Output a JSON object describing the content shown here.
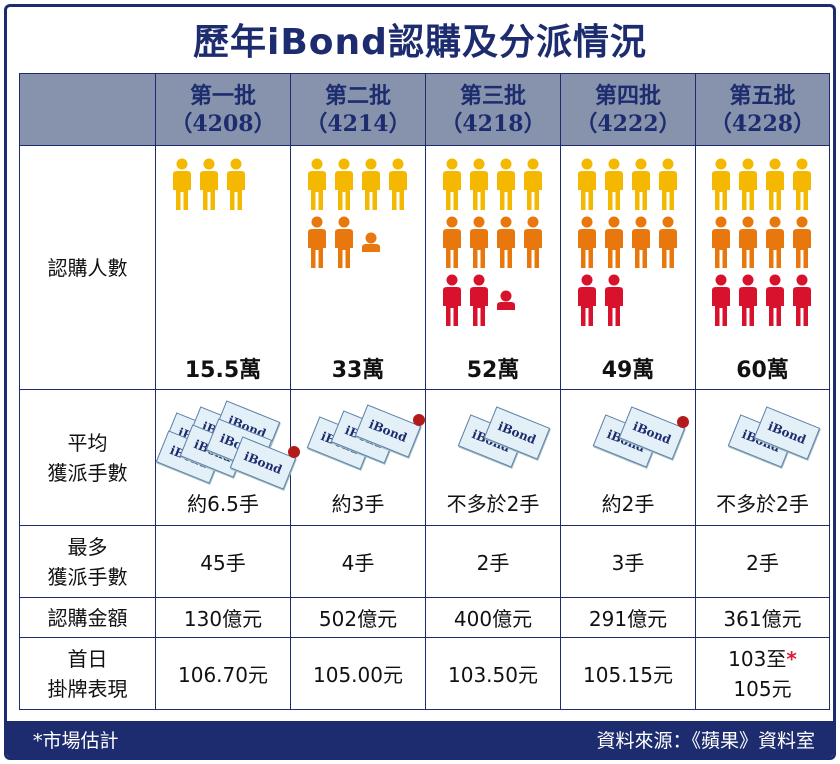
{
  "title": "歷年iBond認購及分派情況",
  "row_labels": {
    "subscribers": "認購人數",
    "avg_allot_line1": "平均",
    "avg_allot_line2": "獲派手數",
    "max_allot_line1": "最多",
    "max_allot_line2": "獲派手數",
    "amount": "認購金額",
    "first_day_line1": "首日",
    "first_day_line2": "掛牌表現"
  },
  "batches": [
    {
      "name": "第一批",
      "code": "（4208）",
      "subscribers": "15.5萬",
      "avg_allot": "約6.5手",
      "max_allot": "45手",
      "amount": "130億元",
      "first_day": "106.70元"
    },
    {
      "name": "第二批",
      "code": "（4214）",
      "subscribers": "33萬",
      "avg_allot": "約3手",
      "max_allot": "4手",
      "amount": "502億元",
      "first_day": "105.00元"
    },
    {
      "name": "第三批",
      "code": "（4218）",
      "subscribers": "52萬",
      "avg_allot": "不多於2手",
      "max_allot": "2手",
      "amount": "400億元",
      "first_day": "103.50元"
    },
    {
      "name": "第四批",
      "code": "（4222）",
      "subscribers": "49萬",
      "avg_allot": "約2手",
      "max_allot": "3手",
      "amount": "291億元",
      "first_day": "105.15元"
    },
    {
      "name": "第五批",
      "code": "（4228）",
      "subscribers": "60萬",
      "avg_allot": "不多於2手",
      "max_allot": "2手",
      "amount": "361億元",
      "first_day_line1": "103至",
      "first_day_line2": "105元",
      "first_day_mark": "*"
    }
  ],
  "bond_label": "iBond",
  "footnote_mark": "*",
  "footnote": "市場估計",
  "source": "資料來源：《蘋果》資料室",
  "colors": {
    "navy": "#1d2c6e",
    "header_bg": "#8793ad",
    "yellow": "#f5b800",
    "orange": "#e8770e",
    "red": "#d8122d"
  },
  "chart_data": {
    "type": "table",
    "title": "歷年iBond認購及分派情況",
    "columns": [
      "第一批（4208）",
      "第二批（4214）",
      "第三批（4218）",
      "第四批（4222）",
      "第五批（4228）"
    ],
    "rows": [
      {
        "label": "認購人數",
        "values": [
          "15.5萬",
          "33萬",
          "52萬",
          "49萬",
          "60萬"
        ]
      },
      {
        "label": "平均獲派手數",
        "values": [
          "約6.5手",
          "約3手",
          "不多於2手",
          "約2手",
          "不多於2手"
        ]
      },
      {
        "label": "最多獲派手數",
        "values": [
          "45手",
          "4手",
          "2手",
          "3手",
          "2手"
        ]
      },
      {
        "label": "認購金額",
        "values": [
          "130億元",
          "502億元",
          "400億元",
          "291億元",
          "361億元"
        ]
      },
      {
        "label": "首日掛牌表現",
        "values": [
          "106.70元",
          "105.00元",
          "103.50元",
          "105.15元",
          "103至105元*"
        ]
      }
    ],
    "subscriber_icons": [
      {
        "yellow": 3,
        "orange": 0,
        "red": 0
      },
      {
        "yellow": 4,
        "orange": 2.5,
        "red": 0
      },
      {
        "yellow": 4,
        "orange": 4,
        "red": 2.5
      },
      {
        "yellow": 4,
        "orange": 4,
        "red": 2
      },
      {
        "yellow": 4,
        "orange": 4,
        "red": 4
      }
    ],
    "bond_icons": [
      6.5,
      3,
      2,
      2,
      2
    ]
  }
}
